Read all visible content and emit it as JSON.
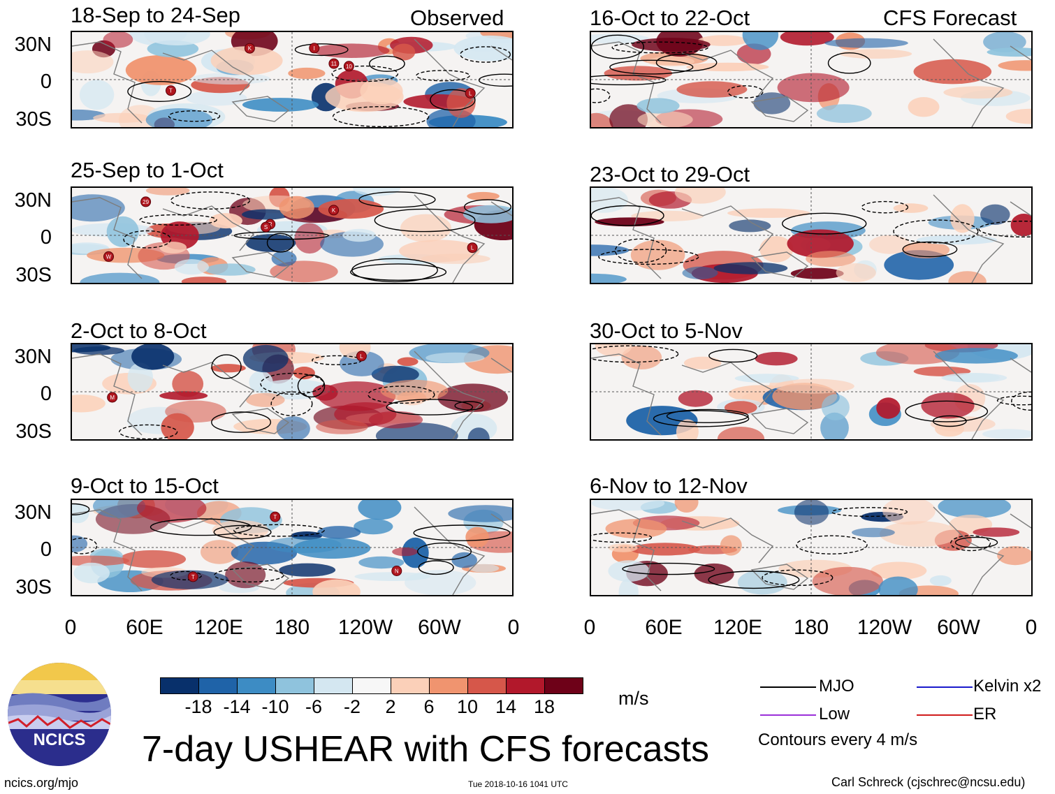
{
  "chart_data": {
    "type": "heatmap",
    "title": "7-day USHEAR with CFS forecasts",
    "column_titles": [
      "Observed",
      "CFS Forecast"
    ],
    "panels": [
      {
        "period": "18-Sep to 24-Sep",
        "source": "Observed",
        "storms": [
          "I",
          "T",
          "10",
          "L",
          "11",
          "K"
        ]
      },
      {
        "period": "25-Sep to 1-Oct",
        "source": "Observed",
        "storms": [
          "29",
          "K",
          "W",
          "L",
          "R",
          "S"
        ]
      },
      {
        "period": "2-Oct to 8-Oct",
        "source": "Observed",
        "storms": [
          "L",
          "M"
        ]
      },
      {
        "period": "9-Oct to 15-Oct",
        "source": "Observed",
        "storms": [
          "T",
          "T",
          "N"
        ]
      },
      {
        "period": "16-Oct to 22-Oct",
        "source": "CFS Forecast",
        "storms": []
      },
      {
        "period": "23-Oct to 29-Oct",
        "source": "CFS Forecast",
        "storms": []
      },
      {
        "period": "30-Oct to 5-Nov",
        "source": "CFS Forecast",
        "storms": []
      },
      {
        "period": "6-Nov to 12-Nov",
        "source": "CFS Forecast",
        "storms": []
      }
    ],
    "y_ticks": [
      "30N",
      "0",
      "30S"
    ],
    "x_ticks": [
      "0",
      "60E",
      "120E",
      "180",
      "120W",
      "60W",
      "0"
    ],
    "colorbar": {
      "labels": [
        "-18",
        "-14",
        "-10",
        "-6",
        "-2",
        "2",
        "6",
        "10",
        "14",
        "18"
      ],
      "colors": [
        "#08306b",
        "#1f63a8",
        "#3d8cc4",
        "#8fc3dd",
        "#d4e7f1",
        "#f7f7f7",
        "#fbd0b9",
        "#f0946f",
        "#d6574a",
        "#b2182b",
        "#6e0118"
      ],
      "units": "m/s"
    },
    "legend": [
      {
        "label": "MJO",
        "color": "#000000"
      },
      {
        "label": "Kelvin x2",
        "color": "#1a1acc"
      },
      {
        "label": "Low",
        "color": "#9b30d9"
      },
      {
        "label": "ER",
        "color": "#d01c1c"
      }
    ],
    "contour_note": "Contours every 4 m/s"
  },
  "footer": {
    "logo_text": "NCICS",
    "url": "ncics.org/mjo",
    "timestamp": "Tue 2018-10-16 1041 UTC",
    "credit": "Carl Schreck (cjschrec@ncsu.edu)"
  }
}
